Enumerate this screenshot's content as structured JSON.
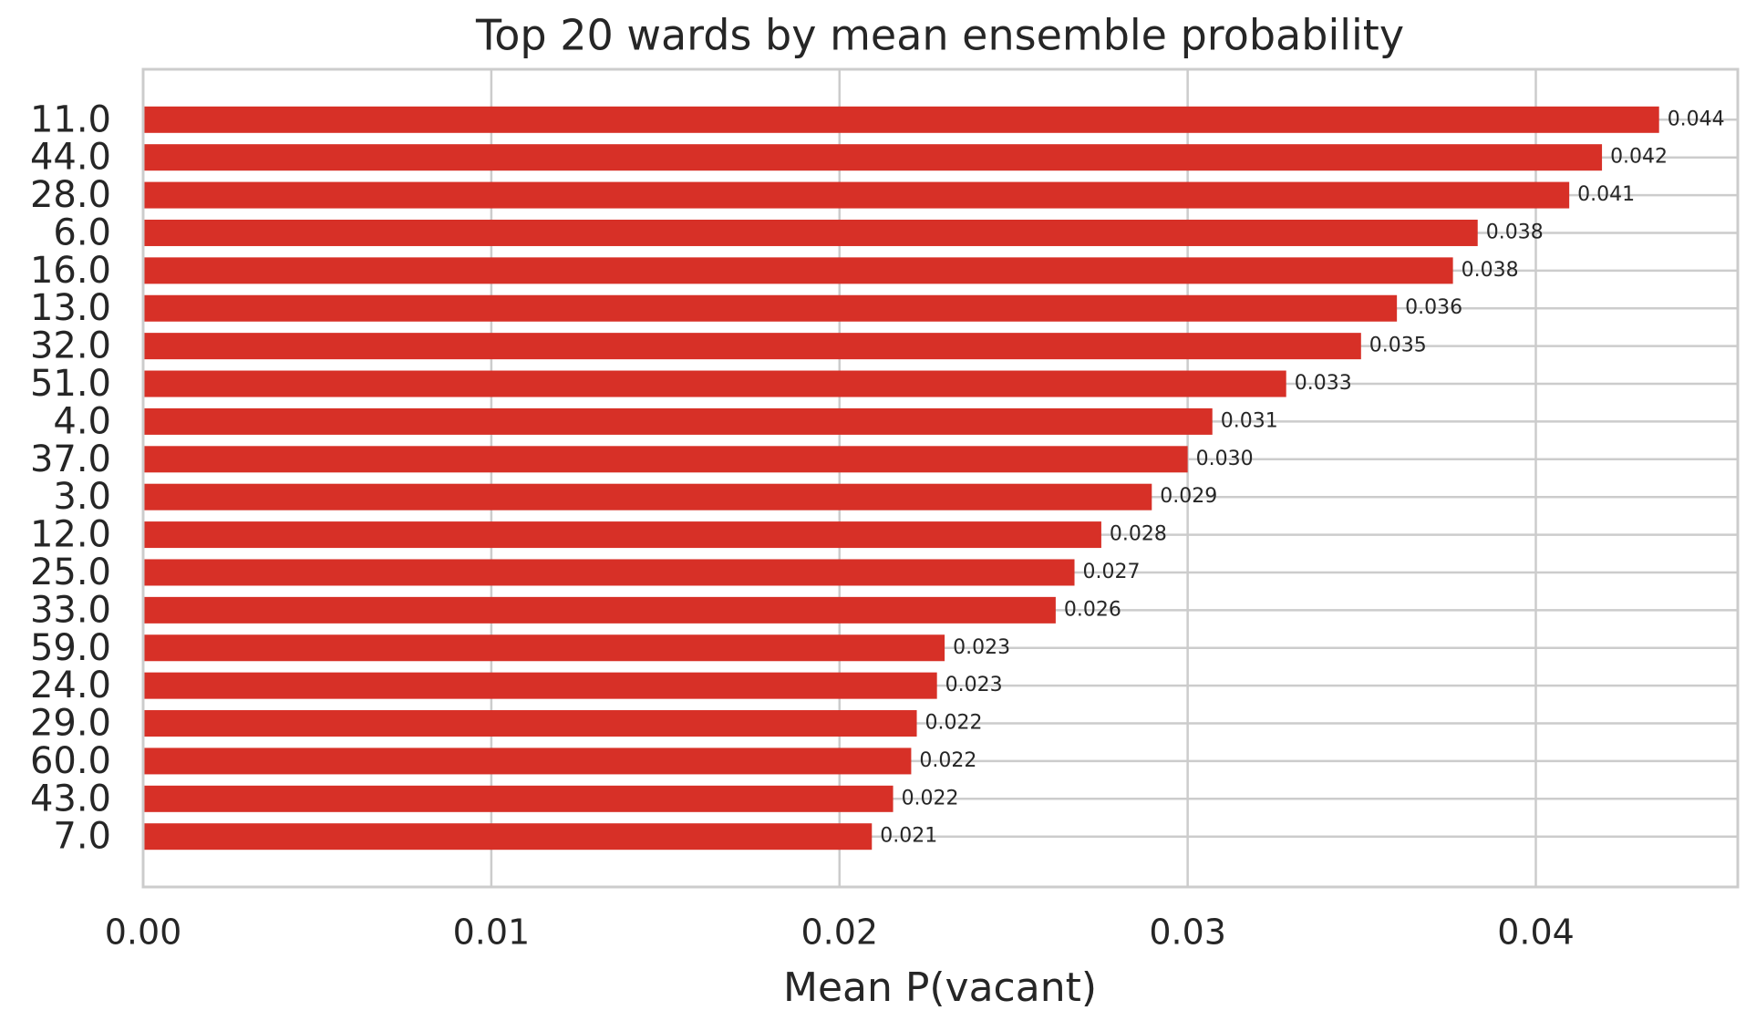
{
  "chart_data": {
    "type": "barh",
    "title": "Top 20 wards by mean ensemble probability",
    "x_label": "Mean P(vacant)",
    "categories": [
      "11.0",
      "44.0",
      "28.0",
      "6.0",
      "16.0",
      "13.0",
      "32.0",
      "51.0",
      "4.0",
      "37.0",
      "3.0",
      "12.0",
      "25.0",
      "33.0",
      "59.0",
      "24.0",
      "29.0",
      "60.0",
      "43.0",
      "7.0"
    ],
    "values": [
      0.04354,
      0.0419,
      0.04096,
      0.03833,
      0.03762,
      0.03601,
      0.03498,
      0.03283,
      0.03071,
      0.03,
      0.02897,
      0.02752,
      0.02675,
      0.02621,
      0.02302,
      0.0228,
      0.02222,
      0.02206,
      0.02154,
      0.02093
    ],
    "value_labels": [
      "0.044",
      "0.042",
      "0.041",
      "0.038",
      "0.038",
      "0.036",
      "0.035",
      "0.033",
      "0.031",
      "0.030",
      "0.029",
      "0.028",
      "0.027",
      "0.026",
      "0.023",
      "0.023",
      "0.022",
      "0.022",
      "0.022",
      "0.021"
    ],
    "color": "#d73027",
    "xlim": [
      0,
      0.0458
    ],
    "xticks": [
      {
        "value": 0,
        "label": "0.00"
      },
      0.01,
      0.02,
      0.03,
      0.04
    ],
    "grid": true
  }
}
